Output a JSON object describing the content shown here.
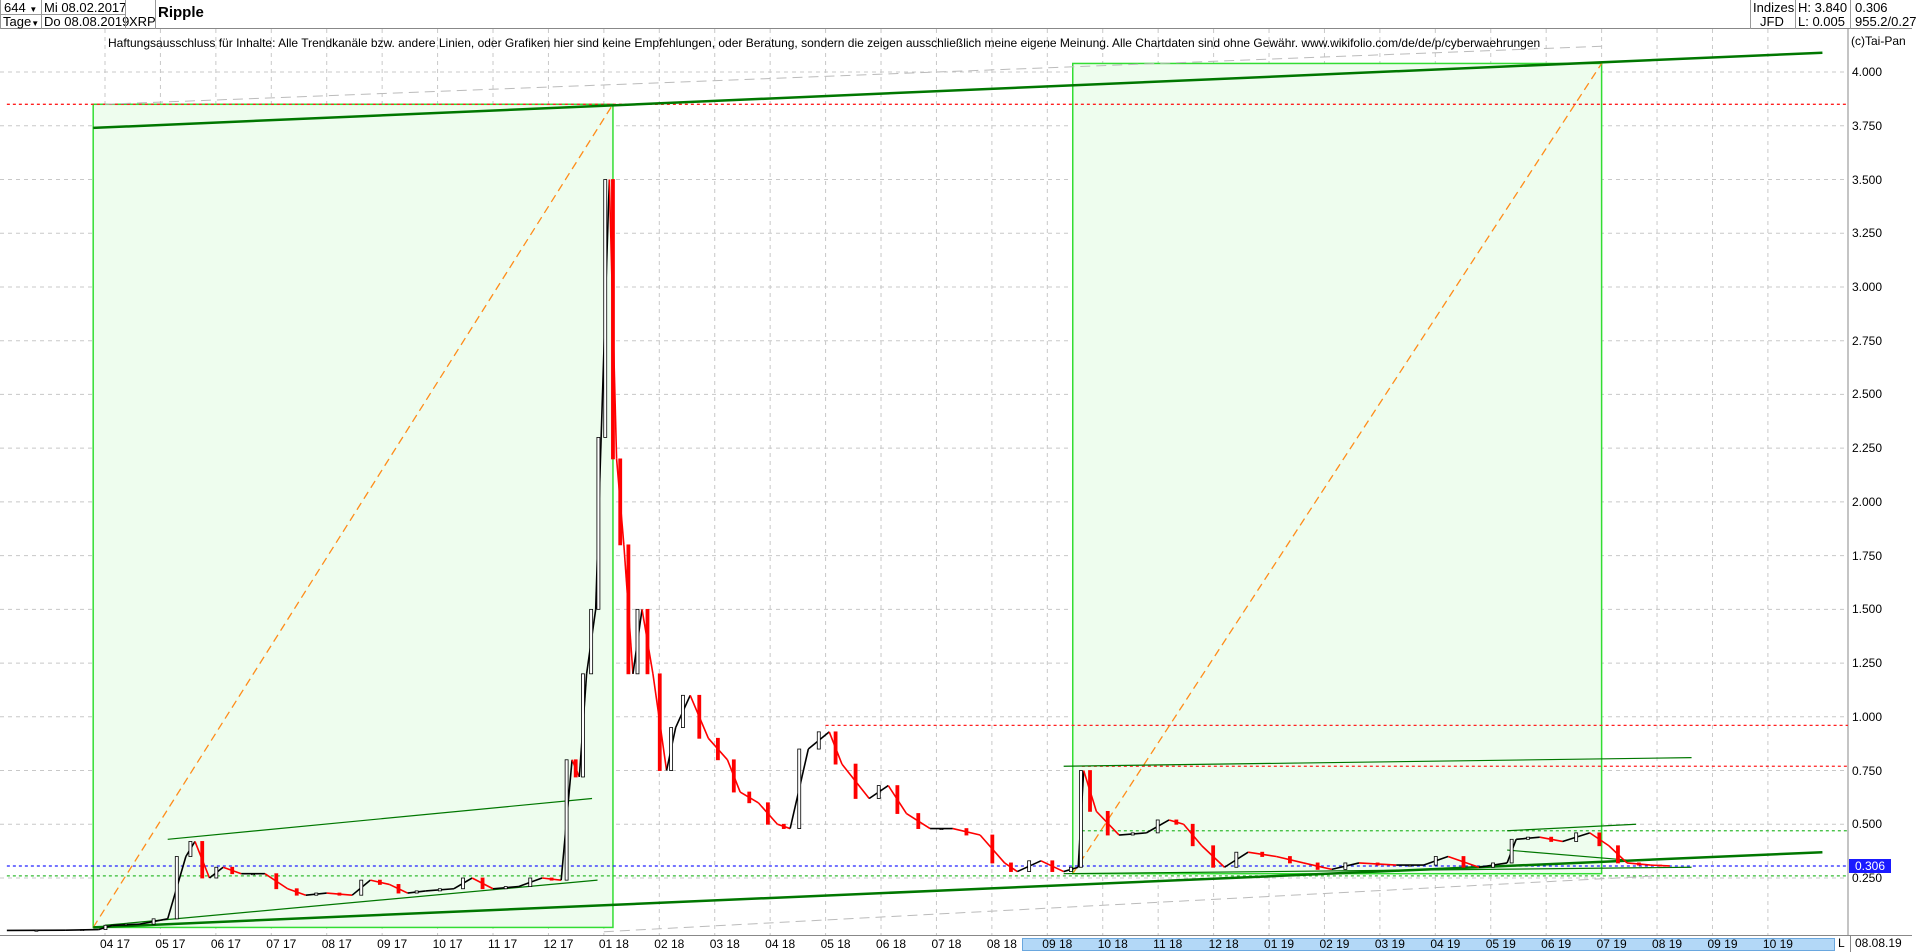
{
  "header": {
    "count": "644",
    "start_date": "Mi 08.02.2017",
    "interval": "Tage",
    "end_date": "Do 08.08.2019",
    "symbol": "XRP",
    "title": "Ripple",
    "exchange_group": "Indizes",
    "source": "JFD",
    "high": "H: 3.840",
    "low": "L: 0.005",
    "last": "0.306",
    "extra": "955.2/0.27"
  },
  "disclaimer": "Haftungsausschluss für Inhalte: Alle Trendkanäle bzw. andere Linien, oder Grafiken hier sind keine Empfehlungen, oder Beratung, sondern die zeigen ausschließlich meine eigene Meinung. Alle Chartdaten sind ohne Gewähr.  www.wikifolio.com/de/de/p/cyberwaehrungen",
  "copyright": "(c)Tai-Pan",
  "footer": {
    "scale_button": "L",
    "current_date": "08.08.19"
  },
  "chart_data": {
    "type": "candlestick",
    "title": "Ripple",
    "ylim": [
      0,
      4.1
    ],
    "y_ticks": [
      "0.250",
      "0.500",
      "0.750",
      "1.000",
      "1.250",
      "1.500",
      "1.750",
      "2.000",
      "2.250",
      "2.500",
      "2.750",
      "3.000",
      "3.250",
      "3.500",
      "3.750",
      "4.000"
    ],
    "x_ticks": [
      "04 17",
      "05 17",
      "06 17",
      "07 17",
      "08 17",
      "09 17",
      "10 17",
      "11 17",
      "12 17",
      "01 18",
      "02 18",
      "03 18",
      "04 18",
      "05 18",
      "06 18",
      "07 18",
      "08 18",
      "09 18",
      "10 18",
      "11 18",
      "12 18",
      "01 19",
      "02 19",
      "03 19",
      "04 19",
      "05 19",
      "06 19",
      "07 19",
      "08 19",
      "09 19",
      "10 19"
    ],
    "last_price_label": "0.306",
    "grid": true,
    "colors": {
      "up": "#000000",
      "down": "#ff0000",
      "rect_fill": "#eefdee",
      "rect_stroke": "#33dd33",
      "trend": "#007700",
      "orange": "#ff8c1a",
      "blue": "#2020ff",
      "red": "#ff2020"
    },
    "series": [
      [
        "2017-02-08",
        0.006
      ],
      [
        "2017-03-10",
        0.007
      ],
      [
        "2017-03-28",
        0.01
      ],
      [
        "2017-04-05",
        0.03
      ],
      [
        "2017-04-20",
        0.035
      ],
      [
        "2017-05-05",
        0.06
      ],
      [
        "2017-05-15",
        0.35
      ],
      [
        "2017-05-20",
        0.42
      ],
      [
        "2017-05-28",
        0.25
      ],
      [
        "2017-06-05",
        0.3
      ],
      [
        "2017-06-15",
        0.27
      ],
      [
        "2017-06-28",
        0.27
      ],
      [
        "2017-07-10",
        0.2
      ],
      [
        "2017-07-20",
        0.17
      ],
      [
        "2017-08-01",
        0.18
      ],
      [
        "2017-08-15",
        0.17
      ],
      [
        "2017-08-25",
        0.24
      ],
      [
        "2017-09-05",
        0.22
      ],
      [
        "2017-09-15",
        0.18
      ],
      [
        "2017-09-25",
        0.19
      ],
      [
        "2017-10-10",
        0.2
      ],
      [
        "2017-10-20",
        0.25
      ],
      [
        "2017-11-01",
        0.2
      ],
      [
        "2017-11-15",
        0.21
      ],
      [
        "2017-11-28",
        0.25
      ],
      [
        "2017-12-08",
        0.24
      ],
      [
        "2017-12-14",
        0.8
      ],
      [
        "2017-12-18",
        0.72
      ],
      [
        "2017-12-22",
        1.2
      ],
      [
        "2017-12-27",
        1.5
      ],
      [
        "2017-12-30",
        2.3
      ],
      [
        "2018-01-04",
        3.5
      ],
      [
        "2018-01-08",
        2.2
      ],
      [
        "2018-01-12",
        1.8
      ],
      [
        "2018-01-17",
        1.2
      ],
      [
        "2018-01-22",
        1.5
      ],
      [
        "2018-01-28",
        1.2
      ],
      [
        "2018-02-05",
        0.75
      ],
      [
        "2018-02-10",
        0.95
      ],
      [
        "2018-02-18",
        1.1
      ],
      [
        "2018-02-28",
        0.9
      ],
      [
        "2018-03-08",
        0.8
      ],
      [
        "2018-03-15",
        0.65
      ],
      [
        "2018-03-25",
        0.6
      ],
      [
        "2018-04-05",
        0.5
      ],
      [
        "2018-04-12",
        0.48
      ],
      [
        "2018-04-22",
        0.85
      ],
      [
        "2018-05-03",
        0.93
      ],
      [
        "2018-05-10",
        0.78
      ],
      [
        "2018-05-25",
        0.62
      ],
      [
        "2018-06-05",
        0.68
      ],
      [
        "2018-06-15",
        0.55
      ],
      [
        "2018-06-28",
        0.48
      ],
      [
        "2018-07-10",
        0.48
      ],
      [
        "2018-07-25",
        0.45
      ],
      [
        "2018-08-08",
        0.32
      ],
      [
        "2018-08-15",
        0.28
      ],
      [
        "2018-08-28",
        0.33
      ],
      [
        "2018-09-10",
        0.28
      ],
      [
        "2018-09-18",
        0.3
      ],
      [
        "2018-09-21",
        0.75
      ],
      [
        "2018-09-28",
        0.56
      ],
      [
        "2018-10-10",
        0.45
      ],
      [
        "2018-10-25",
        0.46
      ],
      [
        "2018-11-07",
        0.52
      ],
      [
        "2018-11-15",
        0.5
      ],
      [
        "2018-11-25",
        0.4
      ],
      [
        "2018-12-07",
        0.3
      ],
      [
        "2018-12-20",
        0.37
      ],
      [
        "2019-01-05",
        0.35
      ],
      [
        "2019-01-20",
        0.32
      ],
      [
        "2019-02-05",
        0.29
      ],
      [
        "2019-02-20",
        0.32
      ],
      [
        "2019-03-10",
        0.31
      ],
      [
        "2019-03-25",
        0.31
      ],
      [
        "2019-04-08",
        0.35
      ],
      [
        "2019-04-25",
        0.3
      ],
      [
        "2019-05-10",
        0.32
      ],
      [
        "2019-05-15",
        0.43
      ],
      [
        "2019-05-28",
        0.44
      ],
      [
        "2019-06-10",
        0.42
      ],
      [
        "2019-06-25",
        0.46
      ],
      [
        "2019-07-05",
        0.4
      ],
      [
        "2019-07-15",
        0.32
      ],
      [
        "2019-07-28",
        0.31
      ],
      [
        "2019-08-08",
        0.306
      ]
    ],
    "annotations": {
      "rectangles": [
        {
          "from": "2017-03-25",
          "to": "2018-01-06",
          "low": 0.02,
          "high": 3.85
        },
        {
          "from": "2018-09-15",
          "to": "2019-07-01",
          "low": 0.27,
          "high": 4.04
        }
      ],
      "thick_trendlines": [
        {
          "from": [
            "2017-03-25",
            3.74
          ],
          "to": [
            "2019-10-31",
            4.09
          ]
        },
        {
          "from": [
            "2017-03-25",
            0.02
          ],
          "to": [
            "2019-10-31",
            0.37
          ]
        }
      ],
      "thin_trendlines": [
        {
          "from": [
            "2017-05-05",
            0.43
          ],
          "to": [
            "2017-12-25",
            0.62
          ]
        },
        {
          "from": [
            "2017-04-01",
            0.03
          ],
          "to": [
            "2017-12-28",
            0.24
          ]
        },
        {
          "from": [
            "2018-09-10",
            0.77
          ],
          "to": [
            "2019-08-20",
            0.81
          ]
        },
        {
          "from": [
            "2018-09-10",
            0.27
          ],
          "to": [
            "2019-08-20",
            0.3
          ]
        },
        {
          "from": [
            "2019-05-10",
            0.47
          ],
          "to": [
            "2019-07-20",
            0.5
          ]
        },
        {
          "from": [
            "2019-05-10",
            0.38
          ],
          "to": [
            "2019-07-20",
            0.33
          ]
        }
      ],
      "orange_dashed": [
        {
          "from": [
            "2017-03-25",
            0.02
          ],
          "to": [
            "2018-01-06",
            3.85
          ]
        },
        {
          "from": [
            "2018-09-15",
            0.27
          ],
          "to": [
            "2019-07-01",
            4.04
          ]
        }
      ],
      "grey_dashed": [
        {
          "from": [
            "2017-04-01",
            3.85
          ],
          "to": [
            "2019-07-01",
            4.12
          ]
        },
        {
          "from": [
            "2018-01-01",
            0.0
          ],
          "to": [
            "2019-08-01",
            0.26
          ]
        }
      ],
      "horizontal": [
        {
          "price": 3.85,
          "color": "red",
          "from": "2017-02-08"
        },
        {
          "price": 0.96,
          "color": "red",
          "from": "2018-05-01"
        },
        {
          "price": 0.77,
          "color": "red",
          "from": "2018-09-20"
        },
        {
          "price": 0.306,
          "color": "blue",
          "from": "2017-02-08"
        },
        {
          "price": 0.26,
          "color": "green",
          "from": "2017-02-08"
        },
        {
          "price": 0.47,
          "color": "green",
          "from": "2018-09-20"
        }
      ]
    }
  }
}
